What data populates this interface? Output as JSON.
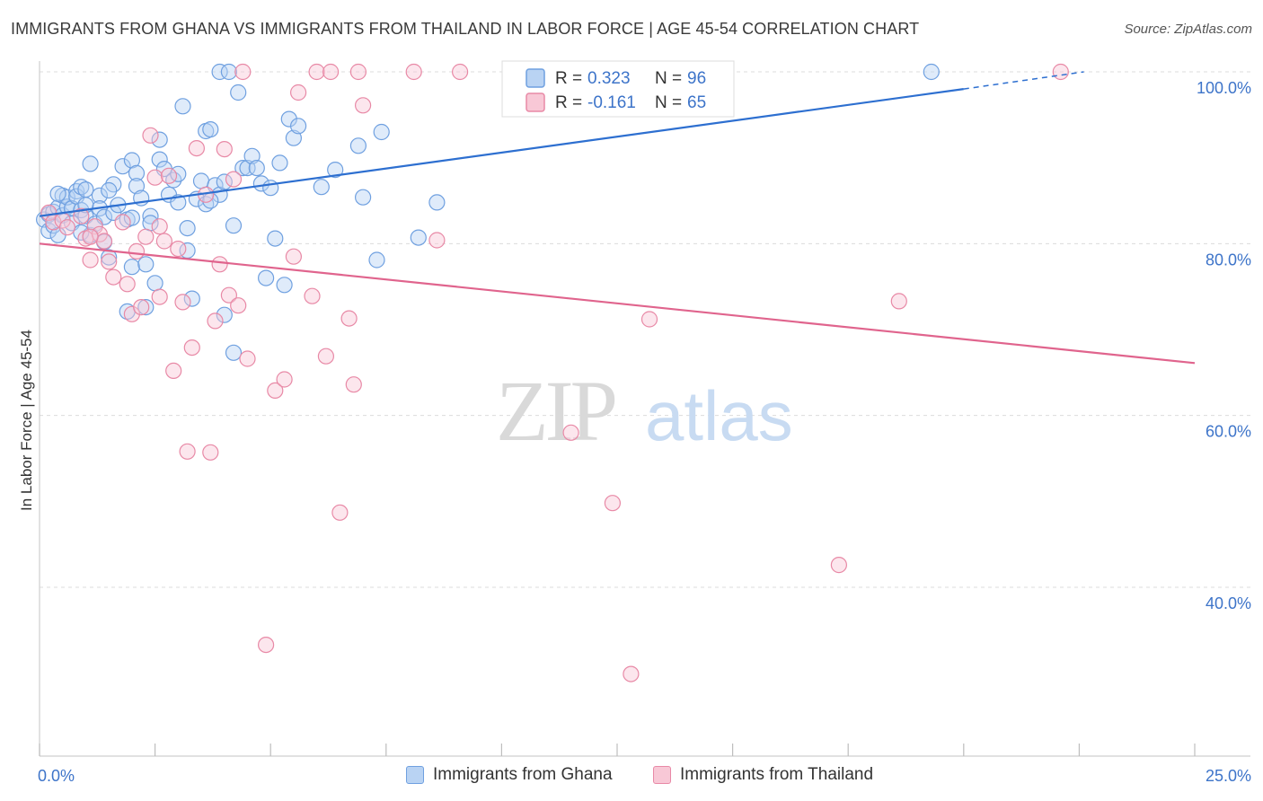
{
  "header": {
    "title": "IMMIGRANTS FROM GHANA VS IMMIGRANTS FROM THAILAND IN LABOR FORCE | AGE 45-54 CORRELATION CHART",
    "source": "Source: ZipAtlas.com"
  },
  "watermark": {
    "zip": "ZIP",
    "atlas": "atlas"
  },
  "chart_data": {
    "type": "scatter",
    "title": "IMMIGRANTS FROM GHANA VS IMMIGRANTS FROM THAILAND IN LABOR FORCE | AGE 45-54 CORRELATION CHART",
    "xlabel": "",
    "ylabel": "In Labor Force | Age 45-54",
    "xlim": [
      0,
      25
    ],
    "ylim": [
      20,
      103
    ],
    "x_tick_labels": {
      "min": "0.0%",
      "max": "25.0%"
    },
    "y_ticks": [
      {
        "value": 100,
        "label": "100.0%"
      },
      {
        "value": 80,
        "label": "80.0%"
      },
      {
        "value": 60,
        "label": "60.0%"
      },
      {
        "value": 40,
        "label": "40.0%"
      }
    ],
    "legend": {
      "position": "top-center",
      "entries": [
        {
          "r_label": "R =",
          "r_value": "0.323",
          "n_label": "N =",
          "n_value": "96"
        },
        {
          "r_label": "R =",
          "r_value": "-0.161",
          "n_label": "N =",
          "n_value": "65"
        }
      ]
    },
    "series": [
      {
        "name": "Immigrants from Ghana",
        "color": "#6fa0e0",
        "fill": "#b9d3f3",
        "line_color": "#2d6fd0",
        "trend": {
          "x0": 0,
          "y0": 83.2,
          "x1": 20,
          "y1": 98.0,
          "dashed_to_x": 22.6,
          "dashed_to_y": 100.0
        },
        "points": [
          [
            0.1,
            82.8
          ],
          [
            0.2,
            83.4
          ],
          [
            0.2,
            81.5
          ],
          [
            0.3,
            82.1
          ],
          [
            0.3,
            83.7
          ],
          [
            0.4,
            84.2
          ],
          [
            0.4,
            81.0
          ],
          [
            0.5,
            85.6
          ],
          [
            0.5,
            83.3
          ],
          [
            0.6,
            84.3
          ],
          [
            0.6,
            85.4
          ],
          [
            0.7,
            82.4
          ],
          [
            0.7,
            84.1
          ],
          [
            0.8,
            86.1
          ],
          [
            0.8,
            85.5
          ],
          [
            0.9,
            83.9
          ],
          [
            0.9,
            86.6
          ],
          [
            1.0,
            83.2
          ],
          [
            1.0,
            86.3
          ],
          [
            1.1,
            89.3
          ],
          [
            1.1,
            81.0
          ],
          [
            1.2,
            82.3
          ],
          [
            1.3,
            85.6
          ],
          [
            1.3,
            84.1
          ],
          [
            1.4,
            83.1
          ],
          [
            1.4,
            80.2
          ],
          [
            1.5,
            78.4
          ],
          [
            1.6,
            83.6
          ],
          [
            1.6,
            86.9
          ],
          [
            1.7,
            84.5
          ],
          [
            1.8,
            89.0
          ],
          [
            1.9,
            82.8
          ],
          [
            1.9,
            72.1
          ],
          [
            2.0,
            89.7
          ],
          [
            2.0,
            77.3
          ],
          [
            2.1,
            88.2
          ],
          [
            2.1,
            86.7
          ],
          [
            2.2,
            85.3
          ],
          [
            2.3,
            72.6
          ],
          [
            2.3,
            77.6
          ],
          [
            2.4,
            83.2
          ],
          [
            2.4,
            82.4
          ],
          [
            2.5,
            75.4
          ],
          [
            2.6,
            92.1
          ],
          [
            2.6,
            89.8
          ],
          [
            2.7,
            88.7
          ],
          [
            2.8,
            85.7
          ],
          [
            2.9,
            87.4
          ],
          [
            3.0,
            88.1
          ],
          [
            3.0,
            84.8
          ],
          [
            3.1,
            96.0
          ],
          [
            3.2,
            81.8
          ],
          [
            3.2,
            79.2
          ],
          [
            3.3,
            73.6
          ],
          [
            3.4,
            85.2
          ],
          [
            3.5,
            87.3
          ],
          [
            3.6,
            84.6
          ],
          [
            3.6,
            93.1
          ],
          [
            3.7,
            93.3
          ],
          [
            3.8,
            86.8
          ],
          [
            3.9,
            85.7
          ],
          [
            3.9,
            100.0
          ],
          [
            4.0,
            87.2
          ],
          [
            4.0,
            71.7
          ],
          [
            4.1,
            100.0
          ],
          [
            4.2,
            82.1
          ],
          [
            4.2,
            67.3
          ],
          [
            4.3,
            97.6
          ],
          [
            4.4,
            88.8
          ],
          [
            4.5,
            88.8
          ],
          [
            4.6,
            90.2
          ],
          [
            4.7,
            88.8
          ],
          [
            4.8,
            87.0
          ],
          [
            4.9,
            76.0
          ],
          [
            5.0,
            86.5
          ],
          [
            5.1,
            80.6
          ],
          [
            5.2,
            89.4
          ],
          [
            5.3,
            75.2
          ],
          [
            5.4,
            94.5
          ],
          [
            5.5,
            92.3
          ],
          [
            5.6,
            93.7
          ],
          [
            6.1,
            86.6
          ],
          [
            6.4,
            88.6
          ],
          [
            6.9,
            91.4
          ],
          [
            7.0,
            85.4
          ],
          [
            7.3,
            78.1
          ],
          [
            7.4,
            93.0
          ],
          [
            8.2,
            80.7
          ],
          [
            8.6,
            84.8
          ],
          [
            19.3,
            100.0
          ],
          [
            1.0,
            84.5
          ],
          [
            0.4,
            85.8
          ],
          [
            2.0,
            83.0
          ],
          [
            3.7,
            85.0
          ],
          [
            0.9,
            81.3
          ],
          [
            1.5,
            86.2
          ]
        ]
      },
      {
        "name": "Immigrants from Thailand",
        "color": "#e889a6",
        "fill": "#f8c8d6",
        "line_color": "#e0648d",
        "trend": {
          "x0": 0,
          "y0": 80.0,
          "x1": 25,
          "y1": 66.1
        },
        "points": [
          [
            0.2,
            83.6
          ],
          [
            0.3,
            82.5
          ],
          [
            0.5,
            82.7
          ],
          [
            0.6,
            81.9
          ],
          [
            0.9,
            83.2
          ],
          [
            1.0,
            80.6
          ],
          [
            1.1,
            78.1
          ],
          [
            1.2,
            82.0
          ],
          [
            1.3,
            81.1
          ],
          [
            1.4,
            80.3
          ],
          [
            1.5,
            77.9
          ],
          [
            1.6,
            76.1
          ],
          [
            1.8,
            82.5
          ],
          [
            1.9,
            75.3
          ],
          [
            2.0,
            71.8
          ],
          [
            2.1,
            79.1
          ],
          [
            2.2,
            72.6
          ],
          [
            2.3,
            80.8
          ],
          [
            2.4,
            92.6
          ],
          [
            2.5,
            87.7
          ],
          [
            2.6,
            73.8
          ],
          [
            2.7,
            80.3
          ],
          [
            2.8,
            87.9
          ],
          [
            2.9,
            65.2
          ],
          [
            3.0,
            79.4
          ],
          [
            3.1,
            73.2
          ],
          [
            3.2,
            55.8
          ],
          [
            3.3,
            67.9
          ],
          [
            3.4,
            91.1
          ],
          [
            3.6,
            85.7
          ],
          [
            3.7,
            55.7
          ],
          [
            3.8,
            71.0
          ],
          [
            3.9,
            77.6
          ],
          [
            4.0,
            91.0
          ],
          [
            4.1,
            74.0
          ],
          [
            4.2,
            87.5
          ],
          [
            4.3,
            72.8
          ],
          [
            4.4,
            100.0
          ],
          [
            4.5,
            66.6
          ],
          [
            4.9,
            33.3
          ],
          [
            5.1,
            62.9
          ],
          [
            5.3,
            64.2
          ],
          [
            5.5,
            78.5
          ],
          [
            5.6,
            97.6
          ],
          [
            5.9,
            73.9
          ],
          [
            6.0,
            100.0
          ],
          [
            6.2,
            66.9
          ],
          [
            6.3,
            100.0
          ],
          [
            6.5,
            48.7
          ],
          [
            6.7,
            71.3
          ],
          [
            6.8,
            63.6
          ],
          [
            6.9,
            100.0
          ],
          [
            7.0,
            96.1
          ],
          [
            8.1,
            100.0
          ],
          [
            8.6,
            80.4
          ],
          [
            9.1,
            100.0
          ],
          [
            11.5,
            58.0
          ],
          [
            12.4,
            49.8
          ],
          [
            12.8,
            29.9
          ],
          [
            13.2,
            71.2
          ],
          [
            17.3,
            42.6
          ],
          [
            18.6,
            73.3
          ],
          [
            22.1,
            100.0
          ],
          [
            2.6,
            82.0
          ],
          [
            1.1,
            80.8
          ]
        ]
      }
    ]
  },
  "bottom_legend": {
    "items": [
      {
        "label": "Immigrants from Ghana"
      },
      {
        "label": "Immigrants from Thailand"
      }
    ]
  }
}
